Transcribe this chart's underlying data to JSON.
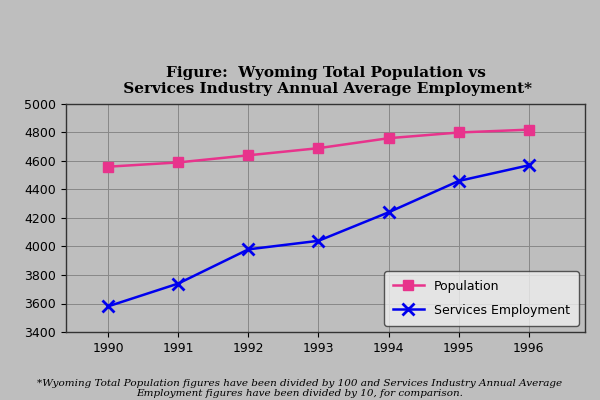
{
  "title": "Figure:  Wyoming Total Population vs\n Services Industry Annual Average Employment*",
  "years": [
    1990,
    1991,
    1992,
    1993,
    1994,
    1995,
    1996
  ],
  "population": [
    4560,
    4590,
    4640,
    4690,
    4760,
    4800,
    4820
  ],
  "services": [
    3580,
    3740,
    3980,
    4040,
    4240,
    4460,
    4570
  ],
  "pop_color": "#E8338C",
  "serv_color": "#0000EE",
  "bg_color": "#BEBEBE",
  "plot_bg_color": "#BEBEBE",
  "grid_color": "#AAAAAA",
  "ylim_min": 3400,
  "ylim_max": 5000,
  "yticks": [
    3400,
    3600,
    3800,
    4000,
    4200,
    4400,
    4600,
    4800,
    5000
  ],
  "footnote": "*Wyoming Total Population figures have been divided by 100 and Services Industry Annual Average\nEmployment figures have been divided by 10, for comparison.",
  "legend_pop": "Population",
  "legend_serv": "Services Employment",
  "title_fontsize": 11,
  "tick_fontsize": 9,
  "footnote_fontsize": 7.5
}
